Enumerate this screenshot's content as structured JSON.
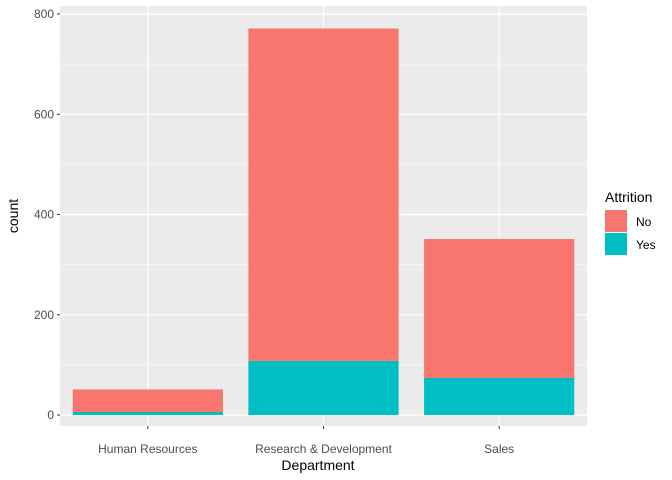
{
  "chart_data": {
    "type": "bar",
    "stacked": true,
    "title": "",
    "xlabel": "Department",
    "ylabel": "count",
    "categories": [
      "Human Resources",
      "Research & Development",
      "Sales"
    ],
    "series": [
      {
        "name": "No",
        "values": [
          45,
          663,
          277
        ],
        "color": "#F8766D"
      },
      {
        "name": "Yes",
        "values": [
          6,
          108,
          74
        ],
        "color": "#00BFC4"
      }
    ],
    "ylim": [
      0,
      800
    ],
    "yticks": [
      0,
      200,
      400,
      600,
      800
    ],
    "grid": true,
    "legend": {
      "title": "Attrition",
      "placement": "right"
    },
    "colors": {
      "panel": "#EBEBEB",
      "grid": "#FFFFFF"
    }
  }
}
